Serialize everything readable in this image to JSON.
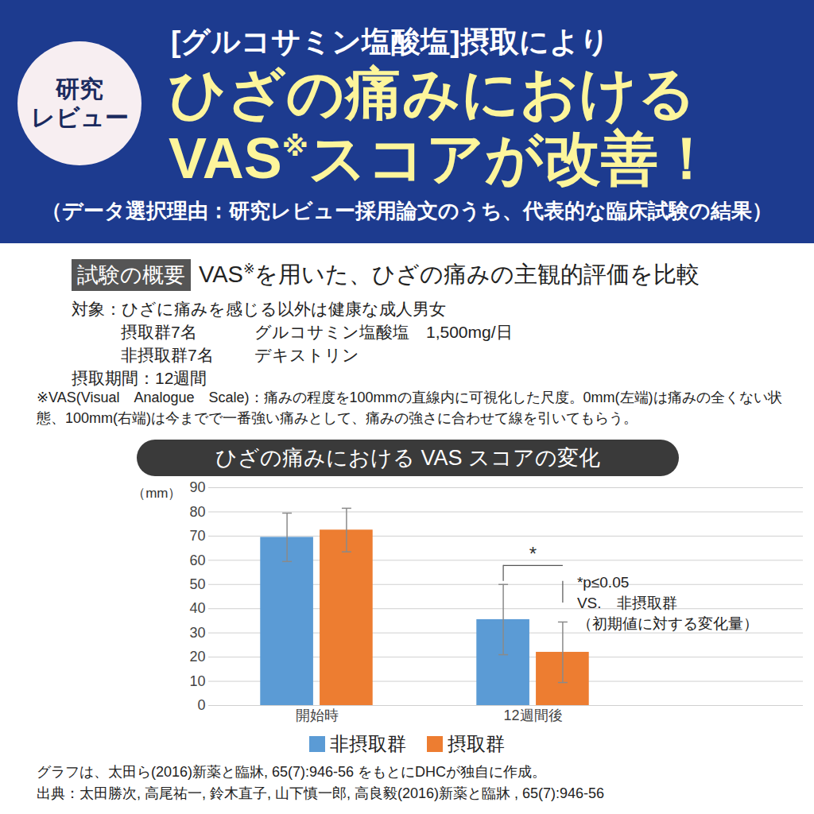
{
  "header": {
    "badge": [
      "研究",
      "レビュー"
    ],
    "line1": "[グルコサミン塩酸塩]摂取により",
    "line2": "ひざの痛みにおける",
    "line3": "VAS※スコアが改善！",
    "note": "（データ選択理由：研究レビュー採用論文のうち、代表的な臨床試験の結果）"
  },
  "overview": {
    "label": "試験の概要",
    "text": "VAS※を用いた、ひざの痛みの主観的評価を比較",
    "details": [
      {
        "label": "対象：",
        "text": "ひざに痛みを感じる以外は健康な成人男女",
        "groups": [
          [
            "摂取群7名",
            "グルコサミン塩酸塩　1,500mg/日"
          ],
          [
            "非摂取群7名",
            "デキストリン"
          ]
        ]
      },
      {
        "label": "摂取期間：",
        "text": "12週間"
      }
    ],
    "vas_note": "※VAS(Visual　Analogue　Scale)：痛みの程度を100mmの直線内に可視化した尺度。0mm(左端)は痛みの全くない状態、100mm(右端)は今までで一番強い痛みとして、痛みの強さに合わせて線を引いてもらう。"
  },
  "chart_data": {
    "type": "bar",
    "title": "ひざの痛みにおける VAS スコアの変化",
    "y_label": "（mm）",
    "categories": [
      "開始時",
      "12週間後"
    ],
    "series": [
      {
        "name": "非摂取群",
        "color": "#5b9bd5",
        "values": [
          69.5,
          35.5
        ],
        "errors": [
          10,
          14.5
        ]
      },
      {
        "name": "摂取群",
        "color": "#ed7d31",
        "values": [
          72.5,
          22
        ],
        "errors": [
          9,
          12.5
        ]
      }
    ],
    "ylim": [
      0,
      90
    ],
    "yticks": [
      0,
      10,
      20,
      30,
      40,
      50,
      60,
      70,
      80,
      90
    ],
    "grid": true,
    "legend": "bottom",
    "significance": {
      "category": "12週間後",
      "label": "*",
      "note": [
        "*p≤0.05",
        "VS.　非摂取群",
        "（初期値に対する変化量）"
      ]
    }
  },
  "footer": [
    "グラフは、太田ら(2016)新薬と臨牀, 65(7):946-56 をもとにDHCが独自に作成。",
    "出典：太田勝次, 高尾祐一, 鈴木直子, 山下慎一郎, 高良毅(2016)新薬と臨牀 , 65(7):946-56"
  ]
}
